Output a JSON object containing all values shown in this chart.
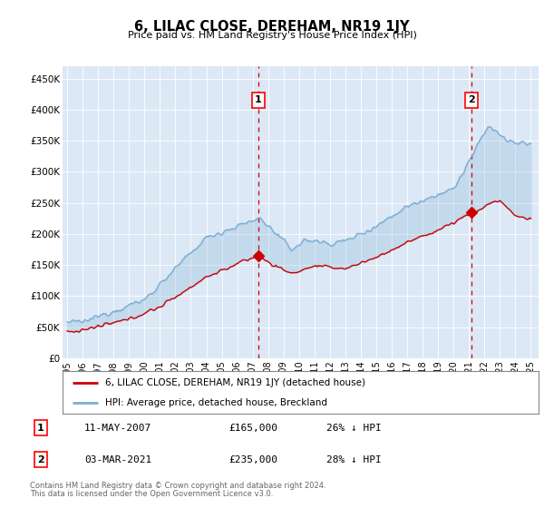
{
  "title": "6, LILAC CLOSE, DEREHAM, NR19 1JY",
  "subtitle": "Price paid vs. HM Land Registry's House Price Index (HPI)",
  "ylabel_ticks": [
    "£0",
    "£50K",
    "£100K",
    "£150K",
    "£200K",
    "£250K",
    "£300K",
    "£350K",
    "£400K",
    "£450K"
  ],
  "ylabel_values": [
    0,
    50000,
    100000,
    150000,
    200000,
    250000,
    300000,
    350000,
    400000,
    450000
  ],
  "ylim": [
    0,
    470000
  ],
  "xlim_start": 1994.7,
  "xlim_end": 2025.5,
  "plot_bg_color": "#dce8f5",
  "hpi_color": "#7aadd4",
  "price_color": "#cc0000",
  "vline_color": "#cc0000",
  "marker1_x": 2007.36,
  "marker1_y": 165000,
  "marker1_label": "1",
  "marker1_date": "11-MAY-2007",
  "marker1_price": "£165,000",
  "marker1_hpi": "26% ↓ HPI",
  "marker2_x": 2021.17,
  "marker2_y": 235000,
  "marker2_label": "2",
  "marker2_date": "03-MAR-2021",
  "marker2_price": "£235,000",
  "marker2_hpi": "28% ↓ HPI",
  "legend_line1": "6, LILAC CLOSE, DEREHAM, NR19 1JY (detached house)",
  "legend_line2": "HPI: Average price, detached house, Breckland",
  "footer1": "Contains HM Land Registry data © Crown copyright and database right 2024.",
  "footer2": "This data is licensed under the Open Government Licence v3.0.",
  "x_ticks": [
    1995,
    1996,
    1997,
    1998,
    1999,
    2000,
    2001,
    2002,
    2003,
    2004,
    2005,
    2006,
    2007,
    2008,
    2009,
    2010,
    2011,
    2012,
    2013,
    2014,
    2015,
    2016,
    2017,
    2018,
    2019,
    2020,
    2021,
    2022,
    2023,
    2024,
    2025
  ]
}
